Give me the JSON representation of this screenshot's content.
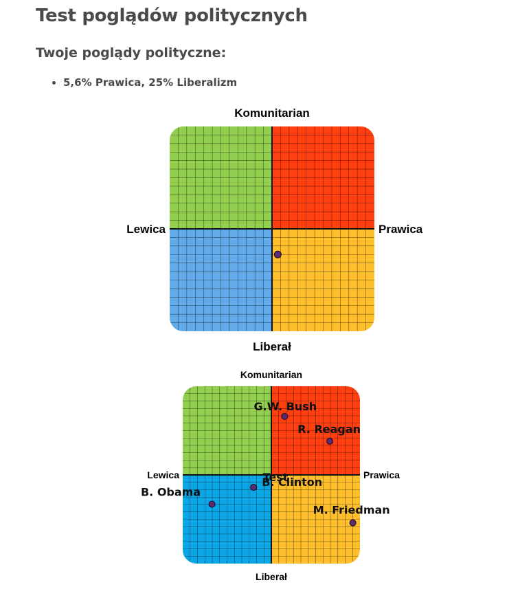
{
  "page": {
    "title": "Test poglądów politycznych",
    "subtitle": "Twoje poglądy polityczne:",
    "results": [
      "5,6% Prawica, 25% Liberalizm"
    ]
  },
  "colors": {
    "top_left": "#92cf4f",
    "top_right": "#ff3f10",
    "bottom_left": "#62aae9",
    "bottom_right": "#ffbf2d",
    "bottom_left_alt": "#0aa6e6",
    "point": "#5b2a6f"
  },
  "chart_data": [
    {
      "type": "scatter",
      "title": "",
      "axes": {
        "top": "Komunitarian",
        "bottom": "Liberał",
        "left": "Lewica",
        "right": "Prawica"
      },
      "xlim": [
        -100,
        100
      ],
      "ylim": [
        -100,
        100
      ],
      "grid": true,
      "points": [
        {
          "label": "",
          "x": 5.6,
          "y": -25
        }
      ]
    },
    {
      "type": "scatter",
      "title": "",
      "axes": {
        "top": "Komunitarian",
        "bottom": "Liberał",
        "left": "Lewica",
        "right": "Prawica"
      },
      "xlim": [
        -100,
        100
      ],
      "ylim": [
        -100,
        100
      ],
      "grid": true,
      "points": [
        {
          "label": "G.W. Bush",
          "x": 15,
          "y": 66
        },
        {
          "label": "R. Reagan",
          "x": 66,
          "y": 38
        },
        {
          "label": "B. Clinton",
          "x": -20,
          "y": -14
        },
        {
          "label": "B. Obama",
          "x": -67,
          "y": -33
        },
        {
          "label": "M. Friedman",
          "x": 92,
          "y": -54
        },
        {
          "label": "Test",
          "x": null,
          "y": null
        }
      ]
    }
  ]
}
